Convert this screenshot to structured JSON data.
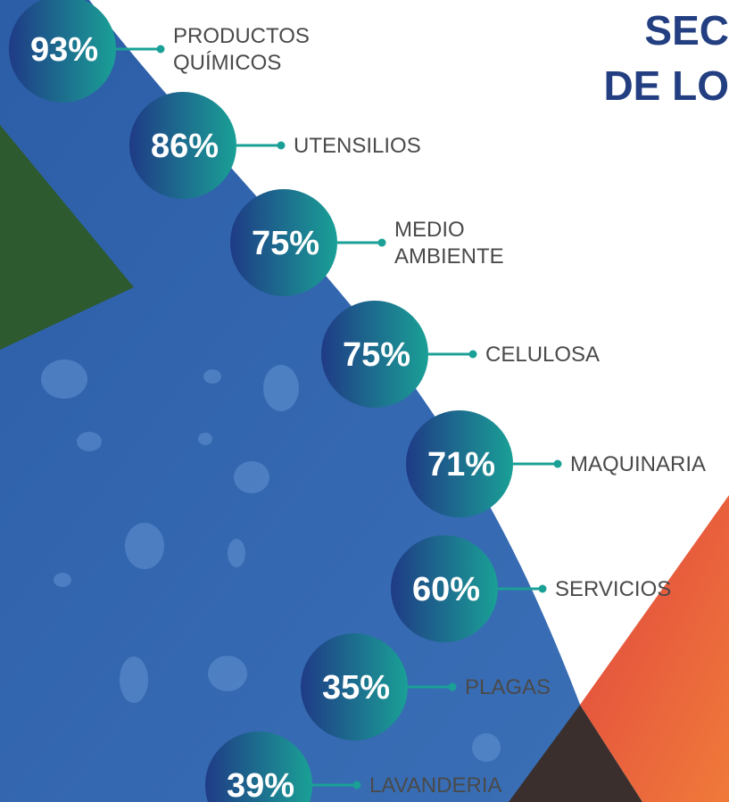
{
  "title": {
    "lines": [
      "SEC",
      "DE LO"
    ]
  },
  "items": [
    {
      "value": "93%",
      "label": [
        "PRODUCTOS",
        "QUÍMICOS"
      ]
    },
    {
      "value": "86%",
      "label": [
        "UTENSILIOS"
      ]
    },
    {
      "value": "75%",
      "label": [
        "MEDIO",
        "AMBIENTE"
      ]
    },
    {
      "value": "75%",
      "label": [
        "CELULOSA"
      ]
    },
    {
      "value": "71%",
      "label": [
        "MAQUINARIA"
      ]
    },
    {
      "value": "60%",
      "label": [
        "SERVICIOS"
      ]
    },
    {
      "value": "35%",
      "label": [
        "PLAGAS"
      ]
    },
    {
      "value": "39%",
      "label": [
        "LAVANDERIA"
      ]
    }
  ]
}
